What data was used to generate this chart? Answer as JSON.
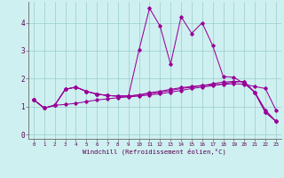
{
  "background_color": "#cff0f0",
  "grid_color": "#99cccc",
  "line_color": "#990099",
  "xlabel": "Windchill (Refroidissement éolien,°C)",
  "xlim": [
    -0.5,
    23.5
  ],
  "ylim": [
    -0.15,
    4.75
  ],
  "xticks": [
    0,
    1,
    2,
    3,
    4,
    5,
    6,
    7,
    8,
    9,
    10,
    11,
    12,
    13,
    14,
    15,
    16,
    17,
    18,
    19,
    20,
    21,
    22,
    23
  ],
  "yticks": [
    0,
    1,
    2,
    3,
    4
  ],
  "lines": [
    [
      1.25,
      0.95,
      1.05,
      1.08,
      1.12,
      1.18,
      1.24,
      1.28,
      1.32,
      1.35,
      1.38,
      1.42,
      1.46,
      1.52,
      1.58,
      1.65,
      1.7,
      1.75,
      1.82,
      1.88,
      1.9,
      1.5,
      0.8,
      0.48
    ],
    [
      1.25,
      0.95,
      1.05,
      1.62,
      1.7,
      1.55,
      1.45,
      1.4,
      1.38,
      1.38,
      1.42,
      1.5,
      1.55,
      1.62,
      1.68,
      1.72,
      1.76,
      1.78,
      1.8,
      1.82,
      1.8,
      1.72,
      1.65,
      0.88
    ],
    [
      1.25,
      0.95,
      1.05,
      1.62,
      1.7,
      1.55,
      1.45,
      1.4,
      1.38,
      1.38,
      3.02,
      4.52,
      3.88,
      2.52,
      4.22,
      3.62,
      4.0,
      3.18,
      2.08,
      2.05,
      1.82,
      1.52,
      0.88,
      0.48
    ],
    [
      1.25,
      0.95,
      1.05,
      1.62,
      1.7,
      1.55,
      1.45,
      1.4,
      1.38,
      1.38,
      1.42,
      1.46,
      1.52,
      1.58,
      1.65,
      1.7,
      1.75,
      1.82,
      1.88,
      1.9,
      1.9,
      1.5,
      0.8,
      0.48
    ]
  ]
}
